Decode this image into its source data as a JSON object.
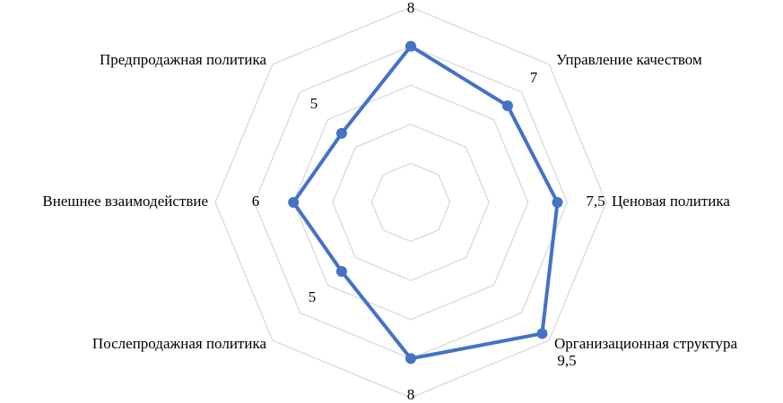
{
  "chart_data": {
    "type": "radar",
    "categories": [
      null,
      "Управление качеством",
      "Ценовая политика",
      "Организационная структура",
      null,
      "Послепродажная политика",
      "Внешнее взаимодействие",
      "Предпродажная политика"
    ],
    "series": [
      {
        "color": "#4472c4",
        "values": [
          8,
          7,
          7.5,
          9.5,
          8,
          5,
          6,
          5
        ],
        "value_labels": [
          "8",
          "7",
          "7,5",
          "9,5",
          "8",
          "5",
          "6",
          "5"
        ]
      }
    ],
    "ylim": [
      0,
      10
    ],
    "yticks": [
      0,
      2,
      4,
      6,
      8,
      10
    ],
    "tick_labels": false,
    "grid": true
  }
}
